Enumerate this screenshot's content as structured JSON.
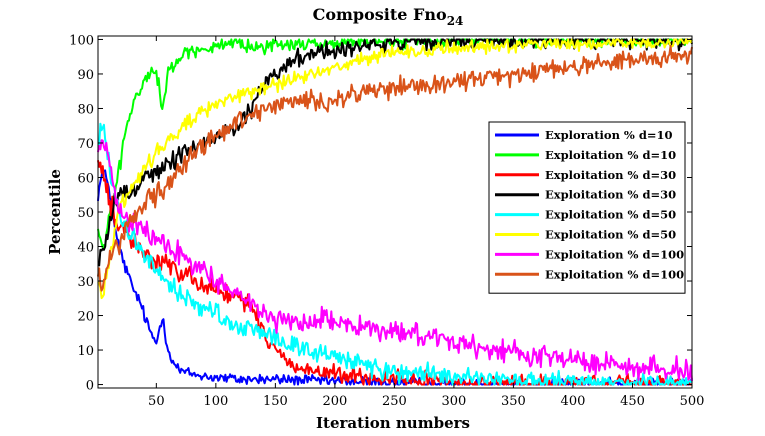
{
  "chart_data": {
    "type": "line",
    "title": "Composite Fno",
    "title_subscript": "24",
    "xlabel": "Iteration numbers",
    "ylabel": "Percentile",
    "xlim": [
      1,
      500
    ],
    "ylim": [
      -1,
      101
    ],
    "xticks": [
      50,
      100,
      150,
      200,
      250,
      300,
      350,
      400,
      450,
      500
    ],
    "yticks": [
      0,
      10,
      20,
      30,
      40,
      50,
      60,
      70,
      80,
      90,
      100
    ],
    "grid": false,
    "legend_position": "right",
    "series": [
      {
        "name": "Exploration % d=10",
        "color": "#0000ff",
        "noise": 1.2,
        "points": [
          [
            1,
            55
          ],
          [
            5,
            62
          ],
          [
            10,
            58
          ],
          [
            15,
            45
          ],
          [
            20,
            38
          ],
          [
            25,
            33
          ],
          [
            30,
            28
          ],
          [
            35,
            25
          ],
          [
            40,
            20
          ],
          [
            45,
            15
          ],
          [
            50,
            12
          ],
          [
            55,
            20
          ],
          [
            60,
            10
          ],
          [
            65,
            6
          ],
          [
            70,
            4
          ],
          [
            80,
            3
          ],
          [
            100,
            2
          ],
          [
            120,
            1.5
          ],
          [
            150,
            1.5
          ],
          [
            200,
            1
          ],
          [
            250,
            0.5
          ],
          [
            300,
            0.3
          ],
          [
            400,
            0.2
          ],
          [
            500,
            0.2
          ]
        ]
      },
      {
        "name": "Exploitation % d=10",
        "color": "#00ff00",
        "noise": 1.5,
        "points": [
          [
            1,
            45
          ],
          [
            5,
            38
          ],
          [
            10,
            48
          ],
          [
            15,
            55
          ],
          [
            20,
            65
          ],
          [
            25,
            75
          ],
          [
            30,
            80
          ],
          [
            35,
            85
          ],
          [
            40,
            88
          ],
          [
            45,
            90
          ],
          [
            50,
            92
          ],
          [
            55,
            80
          ],
          [
            60,
            90
          ],
          [
            70,
            95
          ],
          [
            80,
            97
          ],
          [
            100,
            98
          ],
          [
            150,
            98.5
          ],
          [
            200,
            99
          ],
          [
            250,
            99.5
          ],
          [
            300,
            99.7
          ],
          [
            400,
            99.8
          ],
          [
            500,
            99.8
          ]
        ]
      },
      {
        "name": "Exploitation % d=30",
        "color": "#ff0000",
        "noise": 2.0,
        "points": [
          [
            1,
            65
          ],
          [
            5,
            60
          ],
          [
            10,
            55
          ],
          [
            15,
            48
          ],
          [
            20,
            45
          ],
          [
            30,
            42
          ],
          [
            40,
            38
          ],
          [
            50,
            36
          ],
          [
            60,
            34
          ],
          [
            70,
            33
          ],
          [
            80,
            32
          ],
          [
            90,
            28
          ],
          [
            100,
            28
          ],
          [
            110,
            26
          ],
          [
            120,
            25
          ],
          [
            130,
            22
          ],
          [
            140,
            15
          ],
          [
            150,
            10
          ],
          [
            160,
            7
          ],
          [
            170,
            5
          ],
          [
            180,
            4
          ],
          [
            200,
            3
          ],
          [
            220,
            2
          ],
          [
            250,
            1
          ],
          [
            300,
            0.5
          ],
          [
            350,
            0.2
          ],
          [
            400,
            0.1
          ],
          [
            500,
            0
          ]
        ]
      },
      {
        "name": "Exploitation % d=30",
        "color": "#000000",
        "noise": 2.0,
        "points": [
          [
            1,
            35
          ],
          [
            5,
            38
          ],
          [
            10,
            45
          ],
          [
            15,
            52
          ],
          [
            20,
            55
          ],
          [
            30,
            57
          ],
          [
            40,
            60
          ],
          [
            50,
            62
          ],
          [
            60,
            64
          ],
          [
            70,
            66
          ],
          [
            80,
            68
          ],
          [
            90,
            70
          ],
          [
            100,
            72
          ],
          [
            110,
            74
          ],
          [
            120,
            75
          ],
          [
            130,
            80
          ],
          [
            140,
            86
          ],
          [
            150,
            90
          ],
          [
            160,
            93
          ],
          [
            170,
            95
          ],
          [
            180,
            96
          ],
          [
            200,
            97
          ],
          [
            220,
            98
          ],
          [
            250,
            99
          ],
          [
            300,
            99.5
          ],
          [
            350,
            99.8
          ],
          [
            400,
            99.9
          ],
          [
            500,
            100
          ]
        ]
      },
      {
        "name": "Exploitation % d=50",
        "color": "#00ffff",
        "noise": 2.0,
        "points": [
          [
            1,
            70
          ],
          [
            5,
            75
          ],
          [
            10,
            65
          ],
          [
            15,
            55
          ],
          [
            20,
            48
          ],
          [
            30,
            42
          ],
          [
            40,
            38
          ],
          [
            50,
            33
          ],
          [
            60,
            29
          ],
          [
            70,
            26
          ],
          [
            80,
            24
          ],
          [
            90,
            22
          ],
          [
            100,
            20
          ],
          [
            120,
            17
          ],
          [
            140,
            15
          ],
          [
            160,
            12
          ],
          [
            180,
            10
          ],
          [
            200,
            8
          ],
          [
            220,
            6
          ],
          [
            250,
            4
          ],
          [
            300,
            2
          ],
          [
            350,
            1
          ],
          [
            400,
            0.5
          ],
          [
            500,
            0.2
          ]
        ]
      },
      {
        "name": "Exploitation % d=50",
        "color": "#ffff00",
        "noise": 1.5,
        "points": [
          [
            1,
            30
          ],
          [
            5,
            25
          ],
          [
            10,
            35
          ],
          [
            15,
            45
          ],
          [
            20,
            52
          ],
          [
            30,
            58
          ],
          [
            40,
            63
          ],
          [
            50,
            67
          ],
          [
            60,
            71
          ],
          [
            70,
            74
          ],
          [
            80,
            77
          ],
          [
            90,
            79
          ],
          [
            100,
            81
          ],
          [
            120,
            84
          ],
          [
            140,
            86
          ],
          [
            160,
            88
          ],
          [
            180,
            90
          ],
          [
            200,
            92
          ],
          [
            220,
            94
          ],
          [
            250,
            96
          ],
          [
            300,
            97.5
          ],
          [
            350,
            98.5
          ],
          [
            400,
            99
          ],
          [
            500,
            99.5
          ]
        ]
      },
      {
        "name": "Exploitation % d=100",
        "color": "#ff00ff",
        "noise": 2.2,
        "points": [
          [
            1,
            68
          ],
          [
            5,
            72
          ],
          [
            10,
            65
          ],
          [
            15,
            55
          ],
          [
            20,
            50
          ],
          [
            30,
            47
          ],
          [
            40,
            45
          ],
          [
            50,
            42
          ],
          [
            60,
            40
          ],
          [
            70,
            38
          ],
          [
            80,
            35
          ],
          [
            90,
            32
          ],
          [
            100,
            30
          ],
          [
            120,
            25
          ],
          [
            140,
            20
          ],
          [
            160,
            18
          ],
          [
            180,
            18
          ],
          [
            190,
            20
          ],
          [
            200,
            19
          ],
          [
            220,
            17
          ],
          [
            240,
            16
          ],
          [
            260,
            15
          ],
          [
            280,
            14
          ],
          [
            300,
            12
          ],
          [
            320,
            11
          ],
          [
            340,
            10
          ],
          [
            360,
            9
          ],
          [
            380,
            8
          ],
          [
            400,
            7
          ],
          [
            420,
            6
          ],
          [
            440,
            5.5
          ],
          [
            460,
            5
          ],
          [
            480,
            4.5
          ],
          [
            500,
            4
          ]
        ]
      },
      {
        "name": "Exploitation % d=100",
        "color": "#d95319",
        "noise": 2.0,
        "points": [
          [
            1,
            32
          ],
          [
            5,
            28
          ],
          [
            10,
            35
          ],
          [
            15,
            40
          ],
          [
            20,
            42
          ],
          [
            30,
            48
          ],
          [
            40,
            52
          ],
          [
            50,
            55
          ],
          [
            60,
            58
          ],
          [
            70,
            62
          ],
          [
            80,
            66
          ],
          [
            90,
            70
          ],
          [
            100,
            72
          ],
          [
            120,
            76
          ],
          [
            140,
            80
          ],
          [
            160,
            82
          ],
          [
            180,
            83
          ],
          [
            200,
            82
          ],
          [
            220,
            84
          ],
          [
            240,
            85
          ],
          [
            260,
            86
          ],
          [
            280,
            87
          ],
          [
            300,
            88
          ],
          [
            320,
            89
          ],
          [
            340,
            89
          ],
          [
            360,
            90
          ],
          [
            380,
            91
          ],
          [
            400,
            92
          ],
          [
            420,
            93
          ],
          [
            440,
            94
          ],
          [
            460,
            94
          ],
          [
            480,
            95
          ],
          [
            500,
            95.5
          ]
        ]
      }
    ]
  }
}
